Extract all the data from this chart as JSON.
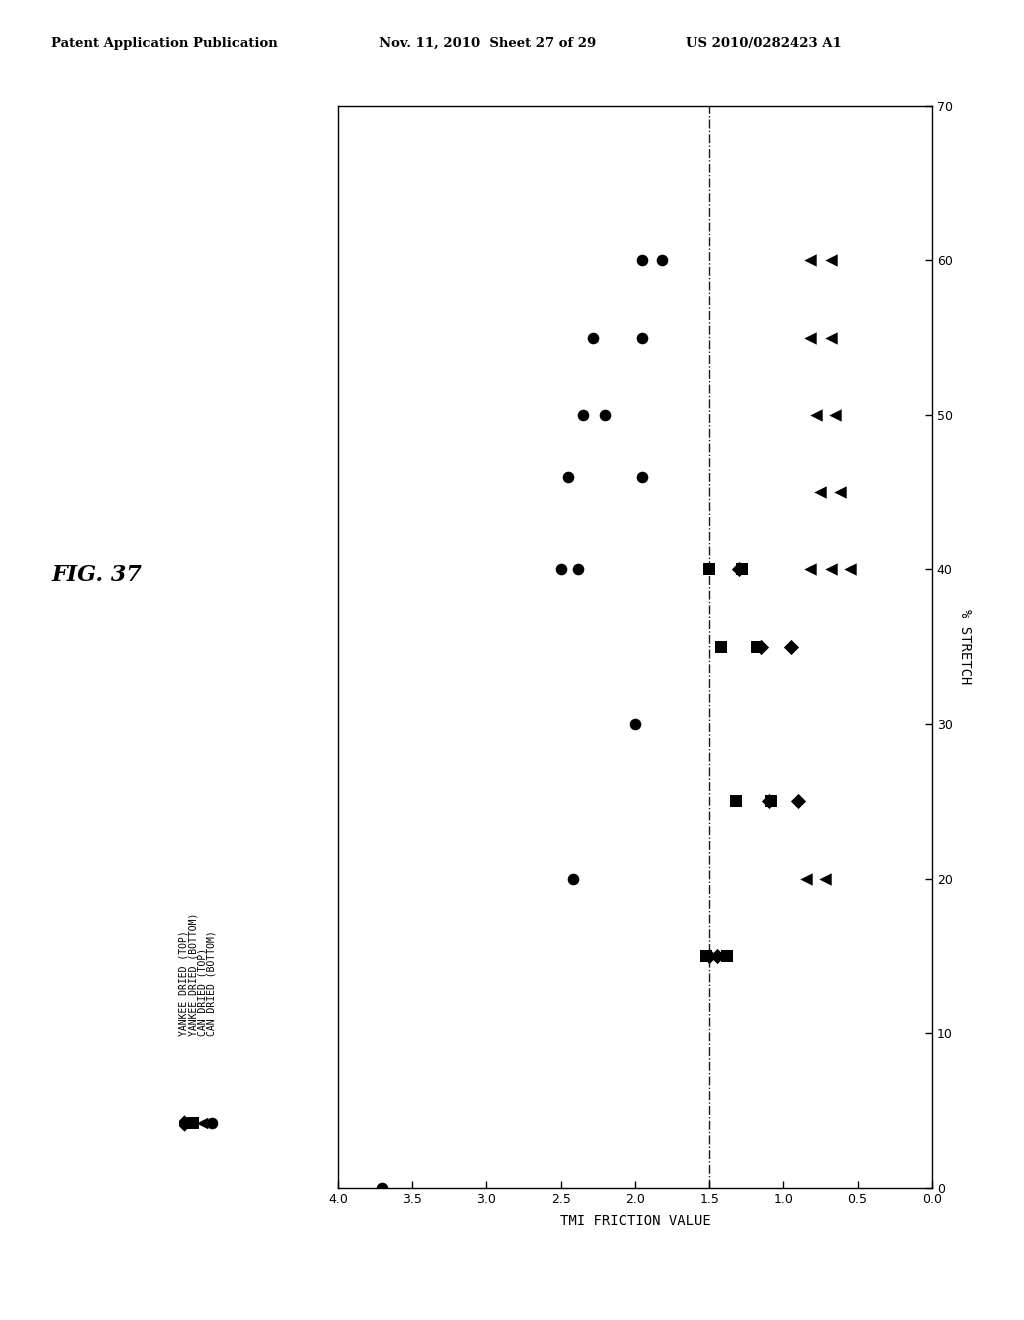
{
  "xlabel": "TMI FRICTION VALUE",
  "ylabel": "% STRETCH",
  "vline_x": 1.5,
  "header_left": "Patent Application Publication",
  "header_mid": "Nov. 11, 2010  Sheet 27 of 29",
  "header_right": "US 2010/0282423 A1",
  "fig_label": "FIG. 37",
  "series": [
    {
      "label": "YANKEE DRIED (TOP)",
      "marker": "D",
      "color": "#000000",
      "points": [
        [
          1.5,
          15
        ],
        [
          1.45,
          15
        ],
        [
          1.1,
          25
        ],
        [
          0.9,
          25
        ],
        [
          1.15,
          35
        ],
        [
          0.95,
          35
        ],
        [
          1.3,
          40
        ]
      ]
    },
    {
      "label": "YANKEE DRIED (BOTTOM)",
      "marker": "s",
      "color": "#000000",
      "points": [
        [
          1.52,
          15
        ],
        [
          1.38,
          15
        ],
        [
          1.32,
          25
        ],
        [
          1.08,
          25
        ],
        [
          1.42,
          35
        ],
        [
          1.18,
          35
        ],
        [
          1.5,
          40
        ],
        [
          1.28,
          40
        ]
      ]
    },
    {
      "label": "CAN DRIED (TOP)",
      "marker": "<",
      "color": "#000000",
      "points": [
        [
          0.85,
          20
        ],
        [
          0.72,
          20
        ],
        [
          0.82,
          40
        ],
        [
          0.68,
          40
        ],
        [
          0.55,
          40
        ],
        [
          0.75,
          45
        ],
        [
          0.62,
          45
        ],
        [
          0.78,
          50
        ],
        [
          0.65,
          50
        ],
        [
          0.82,
          55
        ],
        [
          0.68,
          55
        ],
        [
          0.82,
          60
        ],
        [
          0.68,
          60
        ]
      ]
    },
    {
      "label": "CAN DRIED (BOTTOM)",
      "marker": "o",
      "color": "#000000",
      "points": [
        [
          3.7,
          0
        ],
        [
          2.5,
          40
        ],
        [
          2.38,
          40
        ],
        [
          1.95,
          60
        ],
        [
          1.82,
          60
        ],
        [
          2.28,
          55
        ],
        [
          1.95,
          55
        ],
        [
          2.35,
          50
        ],
        [
          2.2,
          50
        ],
        [
          2.45,
          46
        ],
        [
          1.95,
          46
        ],
        [
          2.0,
          30
        ],
        [
          2.42,
          20
        ]
      ]
    }
  ]
}
